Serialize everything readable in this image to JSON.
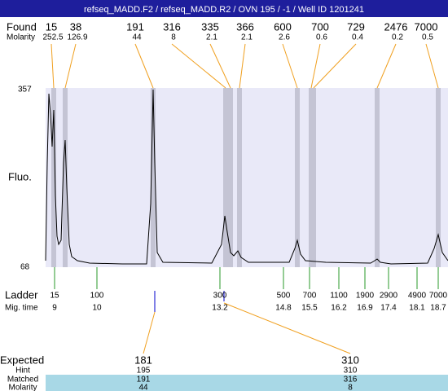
{
  "title": "refseq_MADD.F2 / refseq_MADD.R2 / OVN 195 / -1 / Well ID 1201241",
  "found": {
    "label": "Found",
    "molarity_label": "Molarity",
    "sizes": [
      "15",
      "38",
      "191",
      "316",
      "335",
      "366",
      "600",
      "700",
      "729",
      "2476",
      "7000"
    ],
    "molarities": [
      "252.5",
      "126.9",
      "44",
      "8",
      "2.1",
      "2.1",
      "2.6",
      "0.6",
      "0.4",
      "0.2",
      "0.5"
    ]
  },
  "y_axis": {
    "label": "Fluo.",
    "max": "357",
    "min": "68"
  },
  "ladder": {
    "label": "Ladder",
    "time_label": "Mig. time",
    "sizes": [
      "15",
      "100",
      "300",
      "500",
      "700",
      "1100",
      "1900",
      "2900",
      "4900",
      "7000"
    ],
    "times": [
      "9",
      "10",
      "13.2",
      "14.8",
      "15.5",
      "16.2",
      "16.9",
      "17.4",
      "18.1",
      "18.7"
    ]
  },
  "expected": {
    "expected_label": "Expected",
    "hint_label": "Hint",
    "matched_label": "Matched",
    "molarity_label": "Molarity",
    "columns": [
      {
        "expected": "181",
        "hint": "195",
        "matched": "191",
        "molarity": "44"
      },
      {
        "expected": "310",
        "hint": "310",
        "matched": "316",
        "molarity": "8"
      }
    ]
  }
}
